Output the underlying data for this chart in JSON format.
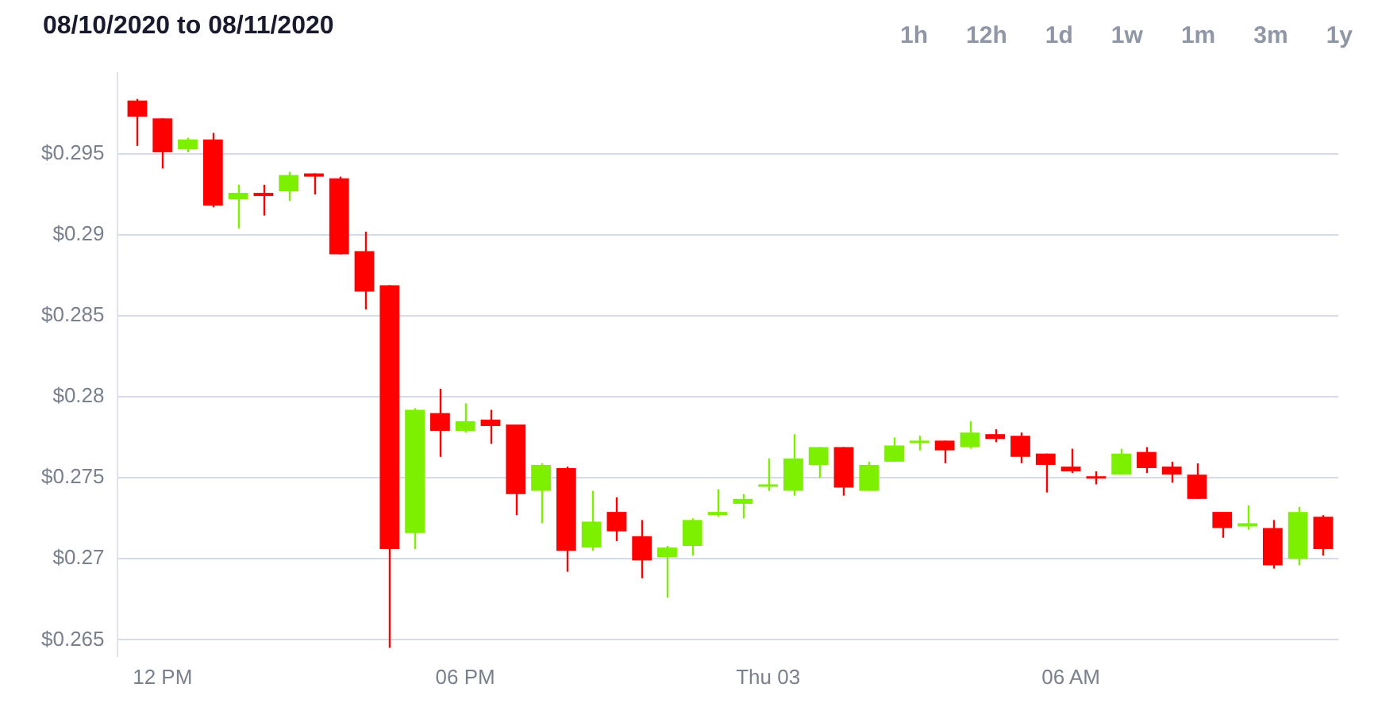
{
  "chart_data": {
    "type": "candlestick",
    "title": "08/10/2020 to 08/11/2020",
    "annotations": [
      "1h",
      "12h",
      "1d",
      "1w",
      "1m",
      "3m",
      "1y"
    ],
    "x": [
      "2020-08-10T11:30",
      "2020-08-10T12:00",
      "2020-08-10T12:30",
      "2020-08-10T13:00",
      "2020-08-10T13:30",
      "2020-08-10T14:00",
      "2020-08-10T14:30",
      "2020-08-10T15:00",
      "2020-08-10T15:30",
      "2020-08-10T16:00",
      "2020-08-10T16:30",
      "2020-08-10T17:00",
      "2020-08-10T17:30",
      "2020-08-10T18:00",
      "2020-08-10T18:30",
      "2020-08-10T19:00",
      "2020-08-10T19:30",
      "2020-08-10T20:00",
      "2020-08-10T20:30",
      "2020-08-10T21:00",
      "2020-08-10T21:30",
      "2020-08-10T22:00",
      "2020-08-10T22:30",
      "2020-08-10T23:00",
      "2020-08-10T23:30",
      "2020-08-11T00:00",
      "2020-08-11T00:30",
      "2020-08-11T01:00",
      "2020-08-11T01:30",
      "2020-08-11T02:00",
      "2020-08-11T02:30",
      "2020-08-11T03:00",
      "2020-08-11T03:30",
      "2020-08-11T04:00",
      "2020-08-11T04:30",
      "2020-08-11T05:00",
      "2020-08-11T05:30",
      "2020-08-11T06:00",
      "2020-08-11T06:30",
      "2020-08-11T07:00",
      "2020-08-11T07:30",
      "2020-08-11T08:00",
      "2020-08-11T08:30",
      "2020-08-11T09:00",
      "2020-08-11T09:30",
      "2020-08-11T10:00",
      "2020-08-11T10:30",
      "2020-08-11T11:00"
    ],
    "ohlc": [
      [
        0.2983,
        0.2984,
        0.2955,
        0.2973
      ],
      [
        0.2972,
        0.2972,
        0.2941,
        0.2951
      ],
      [
        0.2953,
        0.296,
        0.2951,
        0.2959
      ],
      [
        0.2959,
        0.2963,
        0.2917,
        0.2918
      ],
      [
        0.2922,
        0.2931,
        0.2904,
        0.2926
      ],
      [
        0.2926,
        0.2931,
        0.2912,
        0.2924
      ],
      [
        0.2927,
        0.2939,
        0.2921,
        0.2937
      ],
      [
        0.2938,
        0.2938,
        0.2925,
        0.2936
      ],
      [
        0.2935,
        0.2936,
        0.2888,
        0.2888
      ],
      [
        0.289,
        0.2902,
        0.2854,
        0.2865
      ],
      [
        0.2869,
        0.2869,
        0.2645,
        0.2706
      ],
      [
        0.2716,
        0.2793,
        0.2706,
        0.2792
      ],
      [
        0.279,
        0.2805,
        0.2763,
        0.2779
      ],
      [
        0.2779,
        0.2796,
        0.2778,
        0.2785
      ],
      [
        0.2786,
        0.2792,
        0.2771,
        0.2782
      ],
      [
        0.2783,
        0.2783,
        0.2727,
        0.274
      ],
      [
        0.2742,
        0.2759,
        0.2722,
        0.2758
      ],
      [
        0.2756,
        0.2757,
        0.2692,
        0.2705
      ],
      [
        0.2707,
        0.2742,
        0.2705,
        0.2723
      ],
      [
        0.2729,
        0.2738,
        0.2711,
        0.2717
      ],
      [
        0.2714,
        0.2724,
        0.2688,
        0.2699
      ],
      [
        0.2701,
        0.2708,
        0.2676,
        0.2707
      ],
      [
        0.2708,
        0.2725,
        0.2702,
        0.2724
      ],
      [
        0.2727,
        0.2743,
        0.2726,
        0.2729
      ],
      [
        0.2734,
        0.274,
        0.2725,
        0.2737
      ],
      [
        0.2745,
        0.2762,
        0.2742,
        0.2746
      ],
      [
        0.2742,
        0.2777,
        0.2739,
        0.2762
      ],
      [
        0.2758,
        0.2769,
        0.275,
        0.2769
      ],
      [
        0.2769,
        0.2769,
        0.2739,
        0.2744
      ],
      [
        0.2742,
        0.276,
        0.2742,
        0.2758
      ],
      [
        0.276,
        0.2775,
        0.276,
        0.277
      ],
      [
        0.2772,
        0.2776,
        0.2767,
        0.2773
      ],
      [
        0.2773,
        0.2773,
        0.2759,
        0.2767
      ],
      [
        0.2769,
        0.2785,
        0.2768,
        0.2778
      ],
      [
        0.2777,
        0.278,
        0.2772,
        0.2774
      ],
      [
        0.2776,
        0.2778,
        0.2759,
        0.2763
      ],
      [
        0.2765,
        0.2765,
        0.2741,
        0.2758
      ],
      [
        0.2757,
        0.2768,
        0.2753,
        0.2754
      ],
      [
        0.2751,
        0.2754,
        0.2746,
        0.275
      ],
      [
        0.2752,
        0.2768,
        0.2752,
        0.2765
      ],
      [
        0.2766,
        0.2769,
        0.2753,
        0.2756
      ],
      [
        0.2757,
        0.276,
        0.2747,
        0.2752
      ],
      [
        0.2752,
        0.2759,
        0.2737,
        0.2737
      ],
      [
        0.2729,
        0.2729,
        0.2713,
        0.2719
      ],
      [
        0.272,
        0.2733,
        0.2718,
        0.2722
      ],
      [
        0.2719,
        0.2724,
        0.2694,
        0.2696
      ],
      [
        0.27,
        0.2732,
        0.2696,
        0.2729
      ],
      [
        0.2726,
        0.2727,
        0.2702,
        0.2706
      ]
    ],
    "colors": [
      "#ff0000",
      "#ff0000",
      "#7cf000",
      "#ff0000",
      "#7cf000",
      "#ff0000",
      "#7cf000",
      "#ff0000",
      "#ff0000",
      "#ff0000",
      "#ff0000",
      "#7cf000",
      "#ff0000",
      "#7cf000",
      "#ff0000",
      "#ff0000",
      "#7cf000",
      "#ff0000",
      "#7cf000",
      "#ff0000",
      "#ff0000",
      "#7cf000",
      "#7cf000",
      "#7cf000",
      "#7cf000",
      "#7cf000",
      "#7cf000",
      "#7cf000",
      "#ff0000",
      "#7cf000",
      "#7cf000",
      "#7cf000",
      "#ff0000",
      "#7cf000",
      "#ff0000",
      "#ff0000",
      "#ff0000",
      "#ff0000",
      "#ff0000",
      "#7cf000",
      "#ff0000",
      "#ff0000",
      "#ff0000",
      "#ff0000",
      "#7cf000",
      "#ff0000",
      "#7cf000",
      "#ff0000"
    ],
    "xlim": [
      "2020-08-10T11:06",
      "2020-08-11T11:18"
    ],
    "xticks": [
      {
        "value": "2020-08-10T12:00",
        "label": "12 PM"
      },
      {
        "value": "2020-08-10T18:00",
        "label": "06 PM"
      },
      {
        "value": "2020-08-11T00:00",
        "label": "Thu 03"
      },
      {
        "value": "2020-08-11T06:00",
        "label": "06 AM"
      }
    ],
    "ylim": [
      0.264,
      0.3
    ],
    "yticks": [
      {
        "value": 0.265,
        "label": "$0.265"
      },
      {
        "value": 0.27,
        "label": "$0.27"
      },
      {
        "value": 0.275,
        "label": "$0.275"
      },
      {
        "value": 0.28,
        "label": "$0.28"
      },
      {
        "value": 0.285,
        "label": "$0.285"
      },
      {
        "value": 0.29,
        "label": "$0.29"
      },
      {
        "value": 0.295,
        "label": "$0.295"
      }
    ],
    "grid": "y",
    "legend": false
  }
}
